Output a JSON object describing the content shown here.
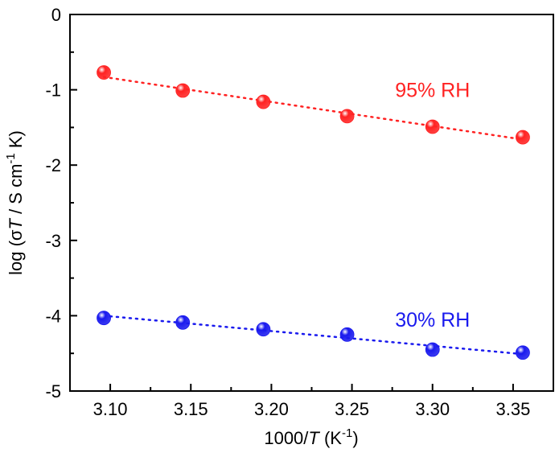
{
  "chart_data": {
    "type": "scatter",
    "xlabel": {
      "prefix": "1000/",
      "var": "T",
      "unit_open": " (K",
      "unit_exp": "-1",
      "unit_close": ")"
    },
    "ylabel": {
      "prefix": "log (σ",
      "var": "T",
      "mid": " / S cm",
      "exp": "-1",
      "suffix": " K)"
    },
    "xlim": [
      3.075,
      3.375
    ],
    "ylim": [
      -5,
      0
    ],
    "xticks": [
      3.1,
      3.15,
      3.2,
      3.25,
      3.3,
      3.35
    ],
    "xtick_labels": [
      "3.10",
      "3.15",
      "3.20",
      "3.25",
      "3.30",
      "3.35"
    ],
    "yticks": [
      0,
      -1,
      -2,
      -3,
      -4,
      -5
    ],
    "ytick_labels": [
      "0",
      "-1",
      "-2",
      "-3",
      "-4",
      "-5"
    ],
    "grid": false,
    "series": [
      {
        "name": "95% RH",
        "color": "#ff2222",
        "x": [
          3.096,
          3.145,
          3.195,
          3.247,
          3.3,
          3.356
        ],
        "y": [
          -0.77,
          -1.01,
          -1.16,
          -1.35,
          -1.49,
          -1.63
        ],
        "fit": {
          "x": [
            3.096,
            3.356
          ],
          "y": [
            -0.83,
            -1.66
          ]
        }
      },
      {
        "name": "30% RH",
        "color": "#1a1aee",
        "x": [
          3.096,
          3.145,
          3.195,
          3.247,
          3.3,
          3.356
        ],
        "y": [
          -4.03,
          -4.09,
          -4.18,
          -4.25,
          -4.45,
          -4.49
        ],
        "fit": {
          "x": [
            3.096,
            3.356
          ],
          "y": [
            -4.0,
            -4.51
          ]
        }
      }
    ]
  }
}
